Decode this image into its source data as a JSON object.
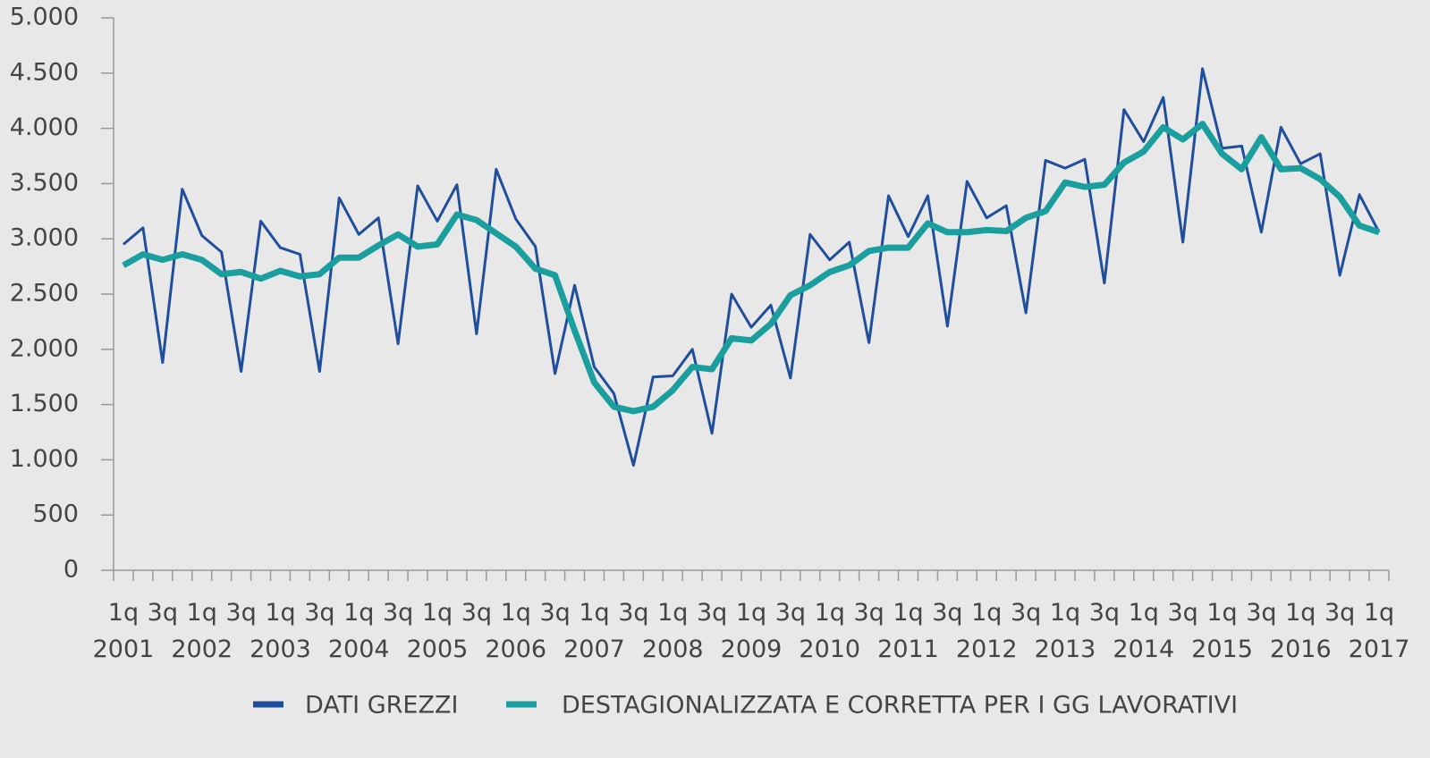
{
  "chart_data": {
    "type": "line",
    "categories": [
      "1q 2001",
      null,
      "3q",
      null,
      "1q 2002",
      null,
      "3q",
      null,
      "1q 2003",
      null,
      "3q",
      null,
      "1q 2004",
      null,
      "3q",
      null,
      "1q 2005",
      null,
      "3q",
      null,
      "1q 2006",
      null,
      "3q",
      null,
      "1q 2007",
      null,
      "3q",
      null,
      "1q 2008",
      null,
      "3q",
      null,
      "1q 2009",
      null,
      "3q",
      null,
      "1q 2010",
      null,
      "3q",
      null,
      "1q 2011",
      null,
      "3q",
      null,
      "1q 2012",
      null,
      "3q",
      null,
      "1q 2013",
      null,
      "3q",
      null,
      "1q 2014",
      null,
      "3q",
      null,
      "1q 2015",
      null,
      "3q",
      null,
      "1q 2016",
      null,
      "3q",
      null,
      "1q 2017"
    ],
    "series": [
      {
        "name": "DATI GREZZI",
        "color": "#1f4e9c",
        "width": 3,
        "values": [
          2950,
          3100,
          1880,
          3450,
          3030,
          2880,
          1800,
          3160,
          2920,
          2860,
          1800,
          3370,
          3040,
          3190,
          2050,
          3480,
          3160,
          3490,
          2140,
          3630,
          3180,
          2930,
          1780,
          2580,
          1840,
          1600,
          950,
          1750,
          1760,
          2000,
          1240,
          2500,
          2200,
          2400,
          1740,
          3040,
          2810,
          2970,
          2060,
          3390,
          3020,
          3390,
          2210,
          3520,
          3190,
          3300,
          2330,
          3710,
          3640,
          3720,
          2600,
          4170,
          3880,
          4280,
          2970,
          4540,
          3820,
          3840,
          3060,
          4010,
          3680,
          3770,
          2670,
          3400,
          3060
        ]
      },
      {
        "name": "DESTAGIONALIZZATA E CORRETTA PER I GG LAVORATIVI",
        "color": "#1a9e9e",
        "width": 7,
        "values": [
          2760,
          2860,
          2810,
          2860,
          2810,
          2680,
          2700,
          2640,
          2710,
          2660,
          2680,
          2830,
          2830,
          2940,
          3040,
          2930,
          2950,
          3220,
          3170,
          3050,
          2930,
          2730,
          2670,
          2170,
          1700,
          1480,
          1440,
          1480,
          1630,
          1840,
          1820,
          2100,
          2080,
          2230,
          2490,
          2580,
          2700,
          2760,
          2890,
          2920,
          2920,
          3140,
          3060,
          3060,
          3080,
          3070,
          3190,
          3250,
          3510,
          3470,
          3490,
          3690,
          3790,
          4010,
          3900,
          4040,
          3770,
          3630,
          3920,
          3630,
          3640,
          3540,
          3380,
          3120,
          3060
        ]
      }
    ],
    "ylim": [
      0,
      5000
    ],
    "yticks": [
      0,
      500,
      {
        "value": 1000,
        "label": "1.000"
      },
      {
        "value": 1500,
        "label": "1.500"
      },
      {
        "value": 2000,
        "label": "2.000"
      },
      {
        "value": 2500,
        "label": "2.500"
      },
      {
        "value": 3000,
        "label": "3.000"
      },
      {
        "value": 3500,
        "label": "3.500"
      },
      {
        "value": 4000,
        "label": "4.000"
      },
      {
        "value": 4500,
        "label": "4.500"
      },
      {
        "value": 5000,
        "label": "5.000"
      }
    ],
    "legend": "bottom"
  }
}
